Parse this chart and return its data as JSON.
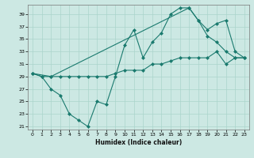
{
  "xlabel": "Humidex (Indice chaleur)",
  "bg_color": "#cce8e3",
  "line_color": "#1a7a6e",
  "grid_color": "#aad4cc",
  "xlim_min": -0.5,
  "xlim_max": 23.5,
  "ylim_min": 20.5,
  "ylim_max": 40.5,
  "yticks": [
    21,
    23,
    25,
    27,
    29,
    31,
    33,
    35,
    37,
    39
  ],
  "xticks": [
    0,
    1,
    2,
    3,
    4,
    5,
    6,
    7,
    8,
    9,
    10,
    11,
    12,
    13,
    14,
    15,
    16,
    17,
    18,
    19,
    20,
    21,
    22,
    23
  ],
  "line1_x": [
    0,
    1,
    2,
    3,
    4,
    5,
    6,
    7,
    8,
    9,
    10,
    11,
    12,
    13,
    14,
    15,
    16,
    17,
    18,
    19,
    20,
    21,
    22,
    23
  ],
  "line1_y": [
    29.5,
    29,
    27,
    26,
    23,
    22,
    21,
    25,
    24.5,
    29,
    34,
    36.5,
    32,
    34.5,
    36,
    39,
    40,
    40,
    38,
    35.5,
    34.5,
    33,
    32,
    32
  ],
  "line2_x": [
    0,
    1,
    2,
    3,
    4,
    5,
    6,
    7,
    8,
    9,
    10,
    11,
    12,
    13,
    14,
    15,
    16,
    17,
    18,
    19,
    20,
    21,
    22,
    23
  ],
  "line2_y": [
    29.5,
    29,
    29,
    29,
    29,
    29,
    29,
    29,
    29,
    29.5,
    30,
    30,
    30,
    31,
    31,
    31.5,
    32,
    32,
    32,
    32,
    33,
    31,
    32,
    32
  ],
  "line3_x": [
    0,
    2,
    17,
    18,
    19,
    20,
    21,
    22,
    23
  ],
  "line3_y": [
    29.5,
    29,
    40,
    38,
    36.5,
    37.5,
    38,
    33,
    32
  ]
}
